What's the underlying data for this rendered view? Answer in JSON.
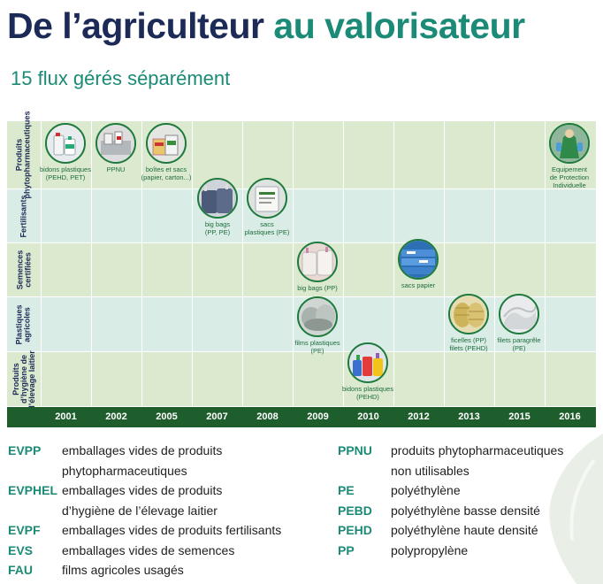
{
  "title": {
    "part1": "De l’agriculteur",
    "part2": "au valorisateur"
  },
  "subtitle": "15 flux gérés séparément",
  "colors": {
    "navy": "#1c2a57",
    "teal": "#1b8a76",
    "dark_green": "#1e5e2c",
    "band_green": "#dbe9cf",
    "band_blue": "#d9ece5"
  },
  "rows": [
    {
      "label_line1": "Produits",
      "label_line2": "phytopharmaceutiques"
    },
    {
      "label_line1": "Fertilisants",
      "label_line2": ""
    },
    {
      "label_line1": "Semences",
      "label_line2": "certifiées"
    },
    {
      "label_line1": "Plastiques",
      "label_line2": "agricoles"
    },
    {
      "label_line1": "Produits",
      "label_line2": "d’hygiène de",
      "label_line3": "l’élevage laitier"
    }
  ],
  "years": [
    "2001",
    "2002",
    "2005",
    "2007",
    "2008",
    "2009",
    "2010",
    "2012",
    "2013",
    "2015",
    "2016"
  ],
  "items": [
    {
      "icon": "pesticide-containers-icon",
      "caption_line1": "bidons plastiques",
      "caption_line2": "(PEHD, PET)"
    },
    {
      "icon": "unused-products-icon",
      "caption_line1": "PPNU",
      "caption_line2": ""
    },
    {
      "icon": "boxes-bags-icon",
      "caption_line1": "boîtes et sacs",
      "caption_line2": "(papier, carton...)"
    },
    {
      "icon": "fertilizer-big-bags-icon",
      "caption_line1": "big bags",
      "caption_line2": "(PP, PE)"
    },
    {
      "icon": "fertilizer-sacks-icon",
      "caption_line1": "sacs",
      "caption_line2": "plastiques (PE)"
    },
    {
      "icon": "seed-big-bags-icon",
      "caption_line1": "big bags (PP)",
      "caption_line2": ""
    },
    {
      "icon": "film-rolls-icon",
      "caption_line1": "films plastiques",
      "caption_line2": "(PE)"
    },
    {
      "icon": "dairy-containers-icon",
      "caption_line1": "bidons plastiques",
      "caption_line2": "(PEHD)"
    },
    {
      "icon": "paper-seed-bags-icon",
      "caption_line1": "sacs papier",
      "caption_line2": ""
    },
    {
      "icon": "twine-nets-icon",
      "caption_line1": "ficelles (PP)",
      "caption_line2": "filets (PEHD)"
    },
    {
      "icon": "hail-nets-icon",
      "caption_line1": "filets paragrêle",
      "caption_line2": "(PE)"
    },
    {
      "icon": "protective-equipment-icon",
      "caption_line1": "Equipement",
      "caption_line2": "de Protection",
      "caption_line3": "Individuelle"
    }
  ],
  "legend_left": [
    {
      "abbr": "EVPP",
      "def1": "emballages vides de produits",
      "def2": "phytopharmaceutiques"
    },
    {
      "abbr": "EVPHEL",
      "def1": "emballages vides de produits",
      "def2": "d’hygiène de l’élevage laitier"
    },
    {
      "abbr": "EVPF",
      "def1": "emballages vides de produits fertilisants"
    },
    {
      "abbr": "EVS",
      "def1": "emballages vides de semences"
    },
    {
      "abbr": "FAU",
      "def1": "films agricoles usagés"
    }
  ],
  "legend_right": [
    {
      "abbr": "PPNU",
      "def1": "produits phytopharmaceutiques",
      "def2": "non utilisables"
    },
    {
      "abbr": "PE",
      "def1": "polyéthylène"
    },
    {
      "abbr": "PEBD",
      "def1": "polyéthylène basse densité"
    },
    {
      "abbr": "PEHD",
      "def1": "polyéthylène haute densité"
    },
    {
      "abbr": "PP",
      "def1": "polypropylène"
    }
  ]
}
